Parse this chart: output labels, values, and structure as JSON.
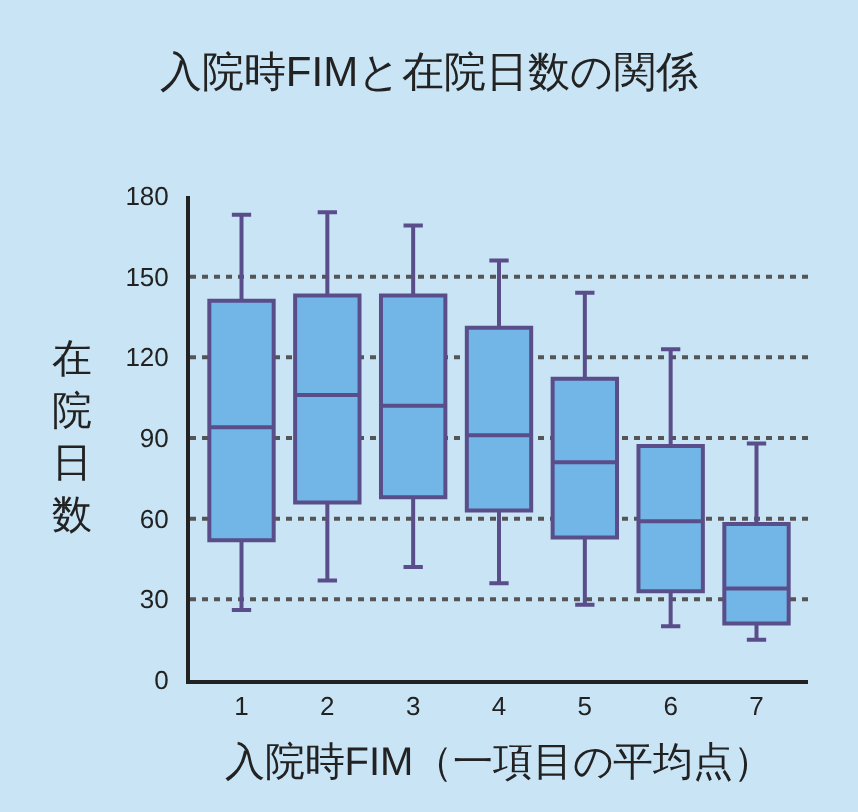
{
  "chart_data": {
    "type": "box",
    "title": "入院時FIMと在院日数の関係",
    "xlabel": "入院時FIM（一項目の平均点）",
    "ylabel": "在院日数",
    "categories": [
      "1",
      "2",
      "3",
      "4",
      "5",
      "6",
      "7"
    ],
    "series": [
      {
        "color": "#72b6e8",
        "boxes": [
          {
            "low": 26,
            "q1": 52,
            "median": 94,
            "q3": 141,
            "high": 173
          },
          {
            "low": 37,
            "q1": 66,
            "median": 106,
            "q3": 143,
            "high": 174
          },
          {
            "low": 42,
            "q1": 68,
            "median": 102,
            "q3": 143,
            "high": 169
          },
          {
            "low": 36,
            "q1": 63,
            "median": 91,
            "q3": 131,
            "high": 156
          },
          {
            "low": 28,
            "q1": 53,
            "median": 81,
            "q3": 112,
            "high": 144
          },
          {
            "low": 20,
            "q1": 33,
            "median": 59,
            "q3": 87,
            "high": 123
          },
          {
            "low": 15,
            "q1": 21,
            "median": 34,
            "q3": 58,
            "high": 88
          }
        ]
      }
    ],
    "ylim": [
      0,
      180
    ],
    "yticks": [
      0,
      30,
      60,
      90,
      120,
      150,
      180
    ],
    "grid": "y"
  }
}
